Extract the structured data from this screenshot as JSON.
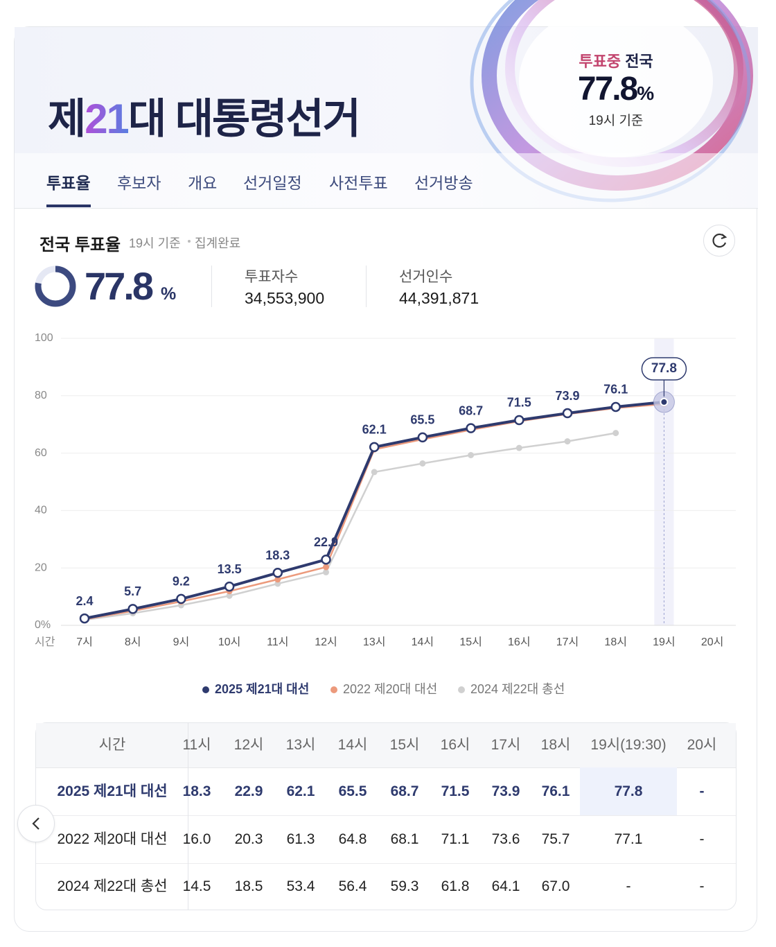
{
  "header": {
    "title_pre": "제",
    "title_num": "21",
    "title_post": "대 대통령선거",
    "status": "투표중",
    "region": "전국",
    "rate": "77.8",
    "unit": "%",
    "basis": "19시 기준"
  },
  "tabs": [
    "투표율",
    "후보자",
    "개요",
    "선거일정",
    "사전투표",
    "선거방송"
  ],
  "summary": {
    "title": "전국 투표율",
    "basis": "19시 기준",
    "status": "집계완료",
    "rate": 77.8,
    "unit": "%",
    "voters_label": "투표자수",
    "voters": "34,553,900",
    "electorate_label": "선거인수",
    "electorate": "44,391,871"
  },
  "chart_data": {
    "type": "line",
    "x_label": "시간",
    "categories": [
      "7시",
      "8시",
      "9시",
      "10시",
      "11시",
      "12시",
      "13시",
      "14시",
      "15시",
      "16시",
      "17시",
      "18시",
      "19시",
      "20시"
    ],
    "series": [
      {
        "name": "2025 제21대 대선",
        "color": "#2e3a6e",
        "values": [
          2.4,
          5.7,
          9.2,
          13.5,
          18.3,
          22.9,
          62.1,
          65.5,
          68.7,
          71.5,
          73.9,
          76.1,
          77.8,
          null
        ]
      },
      {
        "name": "2022 제20대 대선",
        "color": "#ec9a7c",
        "values": [
          2.1,
          5.0,
          8.3,
          11.9,
          16.0,
          20.3,
          61.3,
          64.8,
          68.1,
          71.1,
          73.6,
          75.7,
          77.1,
          null
        ]
      },
      {
        "name": "2024 제22대 총선",
        "color": "#d0d0d0",
        "values": [
          1.9,
          4.2,
          7.0,
          10.3,
          14.5,
          18.5,
          53.4,
          56.4,
          59.3,
          61.8,
          64.1,
          67.0,
          null,
          null
        ]
      }
    ],
    "ylim": [
      0,
      100
    ],
    "yticks": [
      {
        "value": 0,
        "label": "0%"
      },
      20,
      40,
      60,
      80,
      100
    ],
    "grid": true
  },
  "table": {
    "header": [
      "시간",
      "11시",
      "12시",
      "13시",
      "14시",
      "15시",
      "16시",
      "17시",
      "18시",
      "19시(19:30)",
      "20시"
    ],
    "rows": [
      {
        "name": "2025 제21대 대선",
        "cells": [
          "18.3",
          "22.9",
          "62.1",
          "65.5",
          "68.7",
          "71.5",
          "73.9",
          "76.1",
          "77.8",
          "-"
        ]
      },
      {
        "name": "2022 제20대 대선",
        "cells": [
          "16.0",
          "20.3",
          "61.3",
          "64.8",
          "68.1",
          "71.1",
          "73.6",
          "75.7",
          "77.1",
          "-"
        ]
      },
      {
        "name": "2024 제22대 총선",
        "cells": [
          "14.5",
          "18.5",
          "53.4",
          "56.4",
          "59.3",
          "61.8",
          "64.1",
          "67.0",
          "-",
          "-"
        ]
      }
    ]
  }
}
